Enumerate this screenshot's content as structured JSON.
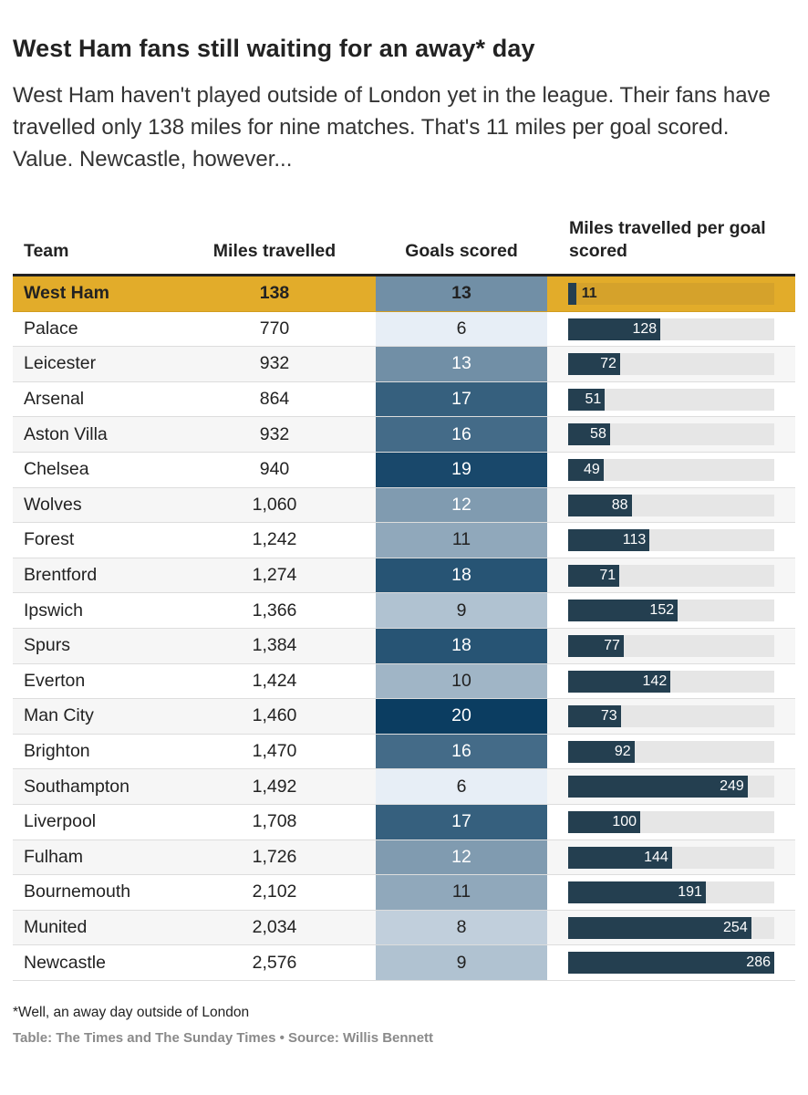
{
  "title": "West Ham fans still waiting for an away* day",
  "subtitle": "West Ham haven't played outside of London yet in the league. Their fans have travelled only 138 miles for nine matches. That's 11 miles per goal scored. Value. Newcastle, however...",
  "columns": {
    "team": "Team",
    "miles": "Miles travelled",
    "goals": "Goals scored",
    "per_goal": "Miles travelled per goal scored"
  },
  "colors": {
    "highlight": "#e2ac2a",
    "bar": "#243f50",
    "track": "#e6e6e6",
    "goals_low": "#e7eef6",
    "goals_high": "#0b3d61"
  },
  "chart_data": {
    "type": "table",
    "title": "West Ham fans still waiting for an away* day",
    "highlight": "West Ham",
    "bar_max": 286,
    "goals_range": [
      6,
      20
    ],
    "rows": [
      {
        "team": "West Ham",
        "miles": "138",
        "goals": 13,
        "per_goal": 11
      },
      {
        "team": "Palace",
        "miles": "770",
        "goals": 6,
        "per_goal": 128
      },
      {
        "team": "Leicester",
        "miles": "932",
        "goals": 13,
        "per_goal": 72
      },
      {
        "team": "Arsenal",
        "miles": "864",
        "goals": 17,
        "per_goal": 51
      },
      {
        "team": "Aston Villa",
        "miles": "932",
        "goals": 16,
        "per_goal": 58
      },
      {
        "team": "Chelsea",
        "miles": "940",
        "goals": 19,
        "per_goal": 49
      },
      {
        "team": "Wolves",
        "miles": "1,060",
        "goals": 12,
        "per_goal": 88
      },
      {
        "team": "Forest",
        "miles": "1,242",
        "goals": 11,
        "per_goal": 113
      },
      {
        "team": "Brentford",
        "miles": "1,274",
        "goals": 18,
        "per_goal": 71
      },
      {
        "team": "Ipswich",
        "miles": "1,366",
        "goals": 9,
        "per_goal": 152
      },
      {
        "team": "Spurs",
        "miles": "1,384",
        "goals": 18,
        "per_goal": 77
      },
      {
        "team": "Everton",
        "miles": "1,424",
        "goals": 10,
        "per_goal": 142
      },
      {
        "team": "Man City",
        "miles": "1,460",
        "goals": 20,
        "per_goal": 73
      },
      {
        "team": "Brighton",
        "miles": "1,470",
        "goals": 16,
        "per_goal": 92
      },
      {
        "team": "Southampton",
        "miles": "1,492",
        "goals": 6,
        "per_goal": 249
      },
      {
        "team": "Liverpool",
        "miles": "1,708",
        "goals": 17,
        "per_goal": 100
      },
      {
        "team": "Fulham",
        "miles": "1,726",
        "goals": 12,
        "per_goal": 144
      },
      {
        "team": "Bournemouth",
        "miles": "2,102",
        "goals": 11,
        "per_goal": 191
      },
      {
        "team": "Munited",
        "miles": "2,034",
        "goals": 8,
        "per_goal": 254
      },
      {
        "team": "Newcastle",
        "miles": "2,576",
        "goals": 9,
        "per_goal": 286
      }
    ]
  },
  "footnote": "*Well, an away day outside of London",
  "source": "Table: The Times and The Sunday Times • Source: Willis Bennett"
}
